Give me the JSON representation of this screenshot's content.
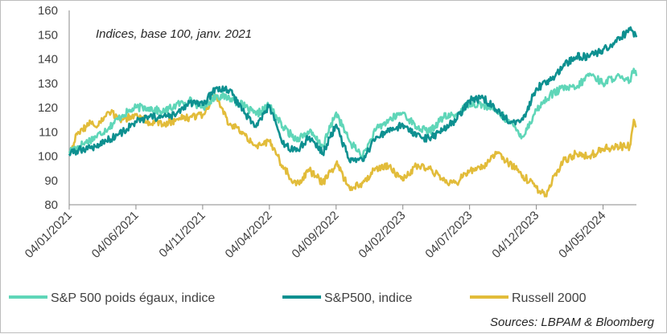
{
  "chart_data": {
    "type": "line",
    "annotation": "Indices, base 100, janv. 2021",
    "source": "Sources: LBPAM & Bloomberg",
    "ylim": [
      80,
      160
    ],
    "yticks": [
      80,
      90,
      100,
      110,
      120,
      130,
      140,
      150,
      160
    ],
    "x_tick_labels": [
      "04/01/2021",
      "04/06/2021",
      "04/11/2021",
      "04/04/2022",
      "04/09/2022",
      "04/02/2023",
      "04/07/2023",
      "04/12/2023",
      "04/05/2024"
    ],
    "xlim_months": [
      0,
      42.5
    ],
    "grid": false,
    "legend_position": "bottom",
    "series": [
      {
        "name": "S&P 500  poids égaux, indice",
        "color": "#5fd6b8",
        "points": [
          [
            0,
            102
          ],
          [
            1,
            105
          ],
          [
            2,
            108
          ],
          [
            3,
            112
          ],
          [
            4,
            117
          ],
          [
            5,
            120
          ],
          [
            6,
            120
          ],
          [
            7,
            118
          ],
          [
            8,
            121
          ],
          [
            9,
            123
          ],
          [
            10,
            120
          ],
          [
            11,
            125
          ],
          [
            12,
            124
          ],
          [
            13,
            121
          ],
          [
            14,
            117
          ],
          [
            15,
            121
          ],
          [
            16,
            112
          ],
          [
            17,
            107
          ],
          [
            18,
            110
          ],
          [
            19,
            104
          ],
          [
            20,
            118
          ],
          [
            21,
            106
          ],
          [
            22,
            100
          ],
          [
            23,
            111
          ],
          [
            24,
            115
          ],
          [
            25,
            118
          ],
          [
            26,
            112
          ],
          [
            27,
            110
          ],
          [
            28,
            116
          ],
          [
            29,
            117
          ],
          [
            30,
            122
          ],
          [
            31,
            121
          ],
          [
            32,
            119
          ],
          [
            33,
            114
          ],
          [
            34,
            108
          ],
          [
            35,
            119
          ],
          [
            36,
            125
          ],
          [
            37,
            128
          ],
          [
            38,
            128
          ],
          [
            39,
            134
          ],
          [
            40,
            130
          ],
          [
            41,
            133
          ],
          [
            41.6,
            131
          ],
          [
            42,
            131
          ],
          [
            42.3,
            136
          ],
          [
            42.5,
            133
          ]
        ]
      },
      {
        "name": "S&P500, indice",
        "color": "#0d9090",
        "points": [
          [
            0,
            101
          ],
          [
            1,
            103
          ],
          [
            2,
            104
          ],
          [
            3,
            107
          ],
          [
            4,
            110
          ],
          [
            5,
            114
          ],
          [
            6,
            116
          ],
          [
            7,
            116
          ],
          [
            8,
            117
          ],
          [
            9,
            122
          ],
          [
            10,
            121
          ],
          [
            11,
            128
          ],
          [
            12,
            127
          ],
          [
            13,
            119
          ],
          [
            14,
            112
          ],
          [
            15,
            121
          ],
          [
            16,
            105
          ],
          [
            17,
            102
          ],
          [
            18,
            108
          ],
          [
            19,
            101
          ],
          [
            20,
            113
          ],
          [
            21,
            98
          ],
          [
            22,
            98
          ],
          [
            23,
            108
          ],
          [
            24,
            110
          ],
          [
            25,
            113
          ],
          [
            26,
            108
          ],
          [
            27,
            107
          ],
          [
            28,
            111
          ],
          [
            29,
            115
          ],
          [
            30,
            123
          ],
          [
            31,
            124
          ],
          [
            32,
            119
          ],
          [
            33,
            114
          ],
          [
            34,
            115
          ],
          [
            35,
            128
          ],
          [
            36,
            131
          ],
          [
            37,
            137
          ],
          [
            38,
            141
          ],
          [
            39,
            141
          ],
          [
            40,
            144
          ],
          [
            41,
            147
          ],
          [
            42,
            152
          ],
          [
            42.5,
            149
          ]
        ]
      },
      {
        "name": "Russell 2000",
        "color": "#e2bc3a",
        "points": [
          [
            0,
            101
          ],
          [
            0.6,
            109
          ],
          [
            1,
            111
          ],
          [
            1.6,
            114
          ],
          [
            2,
            112
          ],
          [
            3,
            118
          ],
          [
            4,
            115
          ],
          [
            5,
            117
          ],
          [
            6,
            114
          ],
          [
            7,
            113
          ],
          [
            8,
            115
          ],
          [
            9,
            116
          ],
          [
            10,
            117
          ],
          [
            11,
            125
          ],
          [
            12,
            113
          ],
          [
            13,
            110
          ],
          [
            14,
            104
          ],
          [
            15,
            106
          ],
          [
            16,
            96
          ],
          [
            17,
            88
          ],
          [
            18,
            94
          ],
          [
            19,
            89
          ],
          [
            20,
            97
          ],
          [
            21,
            87
          ],
          [
            22,
            89
          ],
          [
            23,
            95
          ],
          [
            24,
            96
          ],
          [
            25,
            90
          ],
          [
            26,
            96
          ],
          [
            27,
            95
          ],
          [
            28,
            90
          ],
          [
            29,
            89
          ],
          [
            30,
            94
          ],
          [
            31,
            96
          ],
          [
            32,
            101
          ],
          [
            33,
            97
          ],
          [
            34,
            92
          ],
          [
            35,
            87
          ],
          [
            35.7,
            84
          ],
          [
            36,
            88
          ],
          [
            37,
            98
          ],
          [
            38,
            101
          ],
          [
            39,
            100
          ],
          [
            40,
            103
          ],
          [
            41,
            104
          ],
          [
            42,
            104
          ],
          [
            42.3,
            115
          ],
          [
            42.5,
            112
          ]
        ]
      }
    ]
  }
}
